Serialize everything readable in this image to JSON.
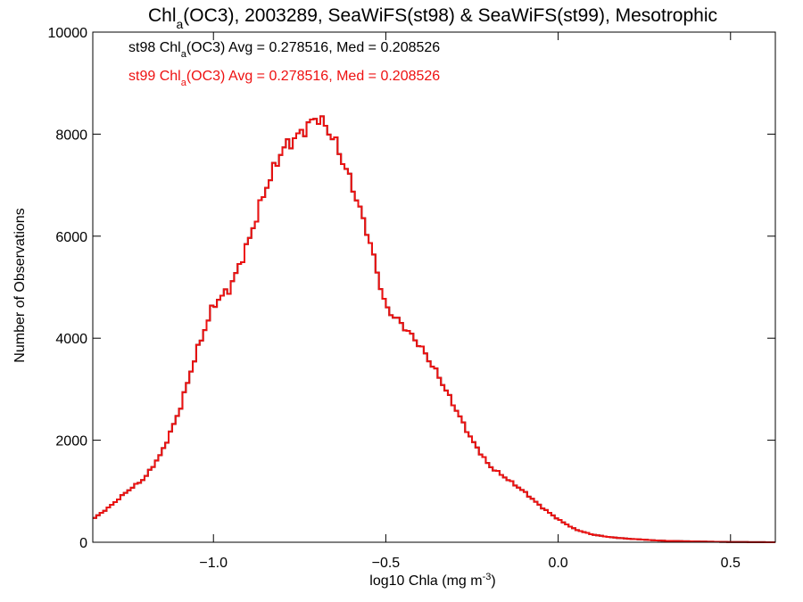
{
  "chart_data": {
    "type": "line",
    "title": {
      "pre": "Chl",
      "sub": "a",
      "post": "(OC3), 2003289, SeaWiFS(st98) & SeaWiFS(st99), Mesotrophic"
    },
    "xlabel": {
      "pre": "log10 Chla (mg m",
      "sup": "-3",
      "post": ")"
    },
    "ylabel": "Number of Observations",
    "xlim": [
      -1.35,
      0.63
    ],
    "ylim": [
      0,
      10000
    ],
    "x_ticks": [
      {
        "value": -1.0,
        "label": "−1.0"
      },
      {
        "value": -0.5,
        "label": "−0.5"
      },
      {
        "value": 0.0,
        "label": "0.0"
      },
      {
        "value": 0.5,
        "label": "0.5"
      }
    ],
    "y_ticks": [
      {
        "value": 0,
        "label": "0"
      },
      {
        "value": 2000,
        "label": "2000"
      },
      {
        "value": 4000,
        "label": "4000"
      },
      {
        "value": 6000,
        "label": "6000"
      },
      {
        "value": 8000,
        "label": "8000"
      },
      {
        "value": 10000,
        "label": "10000"
      }
    ],
    "grid": false,
    "legend_position": "top-left",
    "series": [
      {
        "name": "st98",
        "legend": {
          "pre": "st98 Chl",
          "sub": "a",
          "post": "(OC3) Avg = 0.278516, Med = 0.208526"
        },
        "color": "#000000"
      },
      {
        "name": "st99",
        "legend": {
          "pre": "st99 Chl",
          "sub": "a",
          "post": "(OC3) Avg = 0.278516, Med = 0.208526"
        },
        "color": "#ee1111"
      }
    ],
    "x": [
      -1.35,
      -1.3,
      -1.25,
      -1.2,
      -1.15,
      -1.1,
      -1.05,
      -1.0,
      -0.95,
      -0.9,
      -0.85,
      -0.8,
      -0.75,
      -0.72,
      -0.7,
      -0.68,
      -0.65,
      -0.6,
      -0.55,
      -0.5,
      -0.45,
      -0.4,
      -0.35,
      -0.3,
      -0.25,
      -0.2,
      -0.15,
      -0.1,
      -0.05,
      0.0,
      0.05,
      0.1,
      0.15,
      0.2,
      0.25,
      0.3,
      0.4,
      0.5,
      0.63
    ],
    "y": [
      450,
      700,
      1000,
      1250,
      1750,
      2550,
      3700,
      4650,
      5000,
      5850,
      6900,
      7700,
      8000,
      8200,
      8350,
      8200,
      7900,
      7050,
      6000,
      4600,
      4250,
      3850,
      3300,
      2650,
      2000,
      1500,
      1250,
      1000,
      700,
      450,
      250,
      150,
      100,
      70,
      50,
      30,
      15,
      5,
      0
    ]
  }
}
